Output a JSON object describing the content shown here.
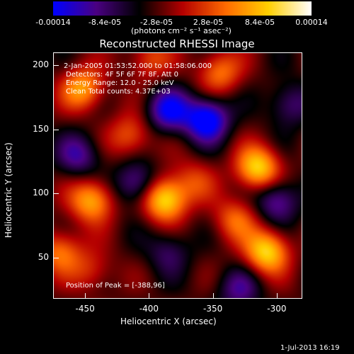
{
  "colorbar": {
    "ticks": [
      "-0.00014",
      "-8.4e-05",
      "-2.8e-05",
      "2.8e-05",
      "8.4e-05",
      "0.00014"
    ],
    "unit": "(photons cm⁻² s⁻¹ asec⁻²)",
    "colormap": [
      "#0000ff",
      "#4b0082",
      "#000000",
      "#b40000",
      "#ff6a00",
      "#ffd000",
      "#ffffff"
    ]
  },
  "annotations": {
    "time_range": "2-Jan-2005 01:53:52.000 to 01:58:06.000",
    "detectors": "Detectors: 4F 5F 6F 7F 8F, Att 0",
    "energy": "Energy Range: 12.0 - 25.0 keV",
    "clean": "Clean     Total counts: 4.37E+03",
    "peak": "Position of Peak = [-388,96]"
  },
  "datestamp": "1-Jul-2013 16:19",
  "chart_data": {
    "type": "heatmap",
    "title": "Reconstructed RHESSI Image",
    "xlabel": "Heliocentric X (arcsec)",
    "ylabel": "Heliocentric Y (arcsec)",
    "xlim": [
      -475,
      -280
    ],
    "ylim": [
      18,
      210
    ],
    "xticks": [
      "-450",
      "-400",
      "-350",
      "-300"
    ],
    "xtick_values": [
      -450,
      -400,
      -350,
      -300
    ],
    "yticks": [
      "50",
      "100",
      "150",
      "200"
    ],
    "ytick_values": [
      50,
      100,
      150,
      200
    ],
    "zlim": [
      -0.00014,
      0.00014
    ],
    "peaks": [
      {
        "x": -388,
        "y": 96,
        "z": 0.00014
      },
      {
        "x": -315,
        "y": 120,
        "z": 0.00013
      },
      {
        "x": -308,
        "y": 55,
        "z": 0.00013
      },
      {
        "x": -445,
        "y": 95,
        "z": 0.00011
      },
      {
        "x": -452,
        "y": 182,
        "z": 0.0001
      },
      {
        "x": -345,
        "y": 195,
        "z": 8e-05
      },
      {
        "x": -470,
        "y": 55,
        "z": 8e-05
      },
      {
        "x": -415,
        "y": 145,
        "z": 7e-05
      },
      {
        "x": -333,
        "y": 80,
        "z": 7e-05
      },
      {
        "x": -365,
        "y": 110,
        "z": 5e-05
      },
      {
        "x": -400,
        "y": 205,
        "z": 6e-05
      },
      {
        "x": -445,
        "y": 40,
        "z": 5e-05
      }
    ],
    "troughs": [
      {
        "x": -355,
        "y": 158,
        "z": -0.00013
      },
      {
        "x": -385,
        "y": 165,
        "z": -0.0001
      },
      {
        "x": -410,
        "y": 108,
        "z": -8e-05
      },
      {
        "x": -300,
        "y": 95,
        "z": -8e-05
      },
      {
        "x": -455,
        "y": 130,
        "z": -7e-05
      },
      {
        "x": -330,
        "y": 25,
        "z": -6e-05
      },
      {
        "x": -290,
        "y": 170,
        "z": -6e-05
      },
      {
        "x": -385,
        "y": 55,
        "z": -5e-05
      }
    ]
  }
}
